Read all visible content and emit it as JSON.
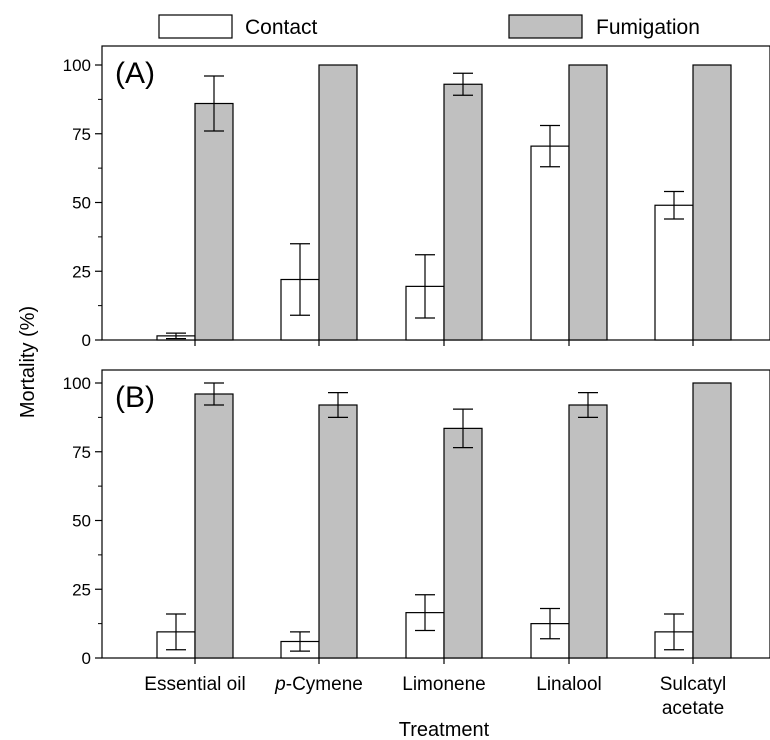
{
  "legend": {
    "contact_label": "Contact",
    "fumigation_label": "Fumigation"
  },
  "colors": {
    "contact_fill": "#ffffff",
    "fumigation_fill": "#c0c0c0",
    "stroke": "#000000"
  },
  "chart_data": [
    {
      "type": "bar",
      "panel_label": "(A)",
      "categories": [
        "Essential oil",
        "p-Cymene",
        "Limonene",
        "Linalool",
        "Sulcatyl acetate"
      ],
      "ylim": [
        0,
        100
      ],
      "yticks": [
        0,
        25,
        50,
        75,
        100
      ],
      "series": [
        {
          "name": "Contact",
          "values": [
            1.5,
            22,
            19.5,
            70.5,
            49
          ],
          "errors": [
            1,
            13,
            11.5,
            7.5,
            5
          ]
        },
        {
          "name": "Fumigation",
          "values": [
            86,
            100,
            93,
            100,
            100
          ],
          "errors": [
            10,
            0,
            4,
            0,
            0
          ]
        }
      ]
    },
    {
      "type": "bar",
      "panel_label": "(B)",
      "categories": [
        "Essential oil",
        "p-Cymene",
        "Limonene",
        "Linalool",
        "Sulcatyl acetate"
      ],
      "ylim": [
        0,
        100
      ],
      "yticks": [
        0,
        25,
        50,
        75,
        100
      ],
      "series": [
        {
          "name": "Contact",
          "values": [
            9.5,
            6,
            16.5,
            12.5,
            9.5
          ],
          "errors": [
            6.5,
            3.5,
            6.5,
            5.5,
            6.5
          ]
        },
        {
          "name": "Fumigation",
          "values": [
            96,
            92,
            83.5,
            92,
            100
          ],
          "errors": [
            4,
            4.5,
            7,
            4.5,
            0
          ]
        }
      ]
    }
  ],
  "axes": {
    "ylabel": "Mortality (%)",
    "xlabel": "Treatment",
    "xtick_labels": [
      {
        "prefix": "",
        "rest": "Essential oil",
        "line2": ""
      },
      {
        "prefix": "p",
        "rest": "-Cymene",
        "line2": ""
      },
      {
        "prefix": "",
        "rest": "Limonene",
        "line2": ""
      },
      {
        "prefix": "",
        "rest": "Linalool",
        "line2": ""
      },
      {
        "prefix": "",
        "rest": "Sulcatyl",
        "line2": "acetate"
      }
    ]
  }
}
